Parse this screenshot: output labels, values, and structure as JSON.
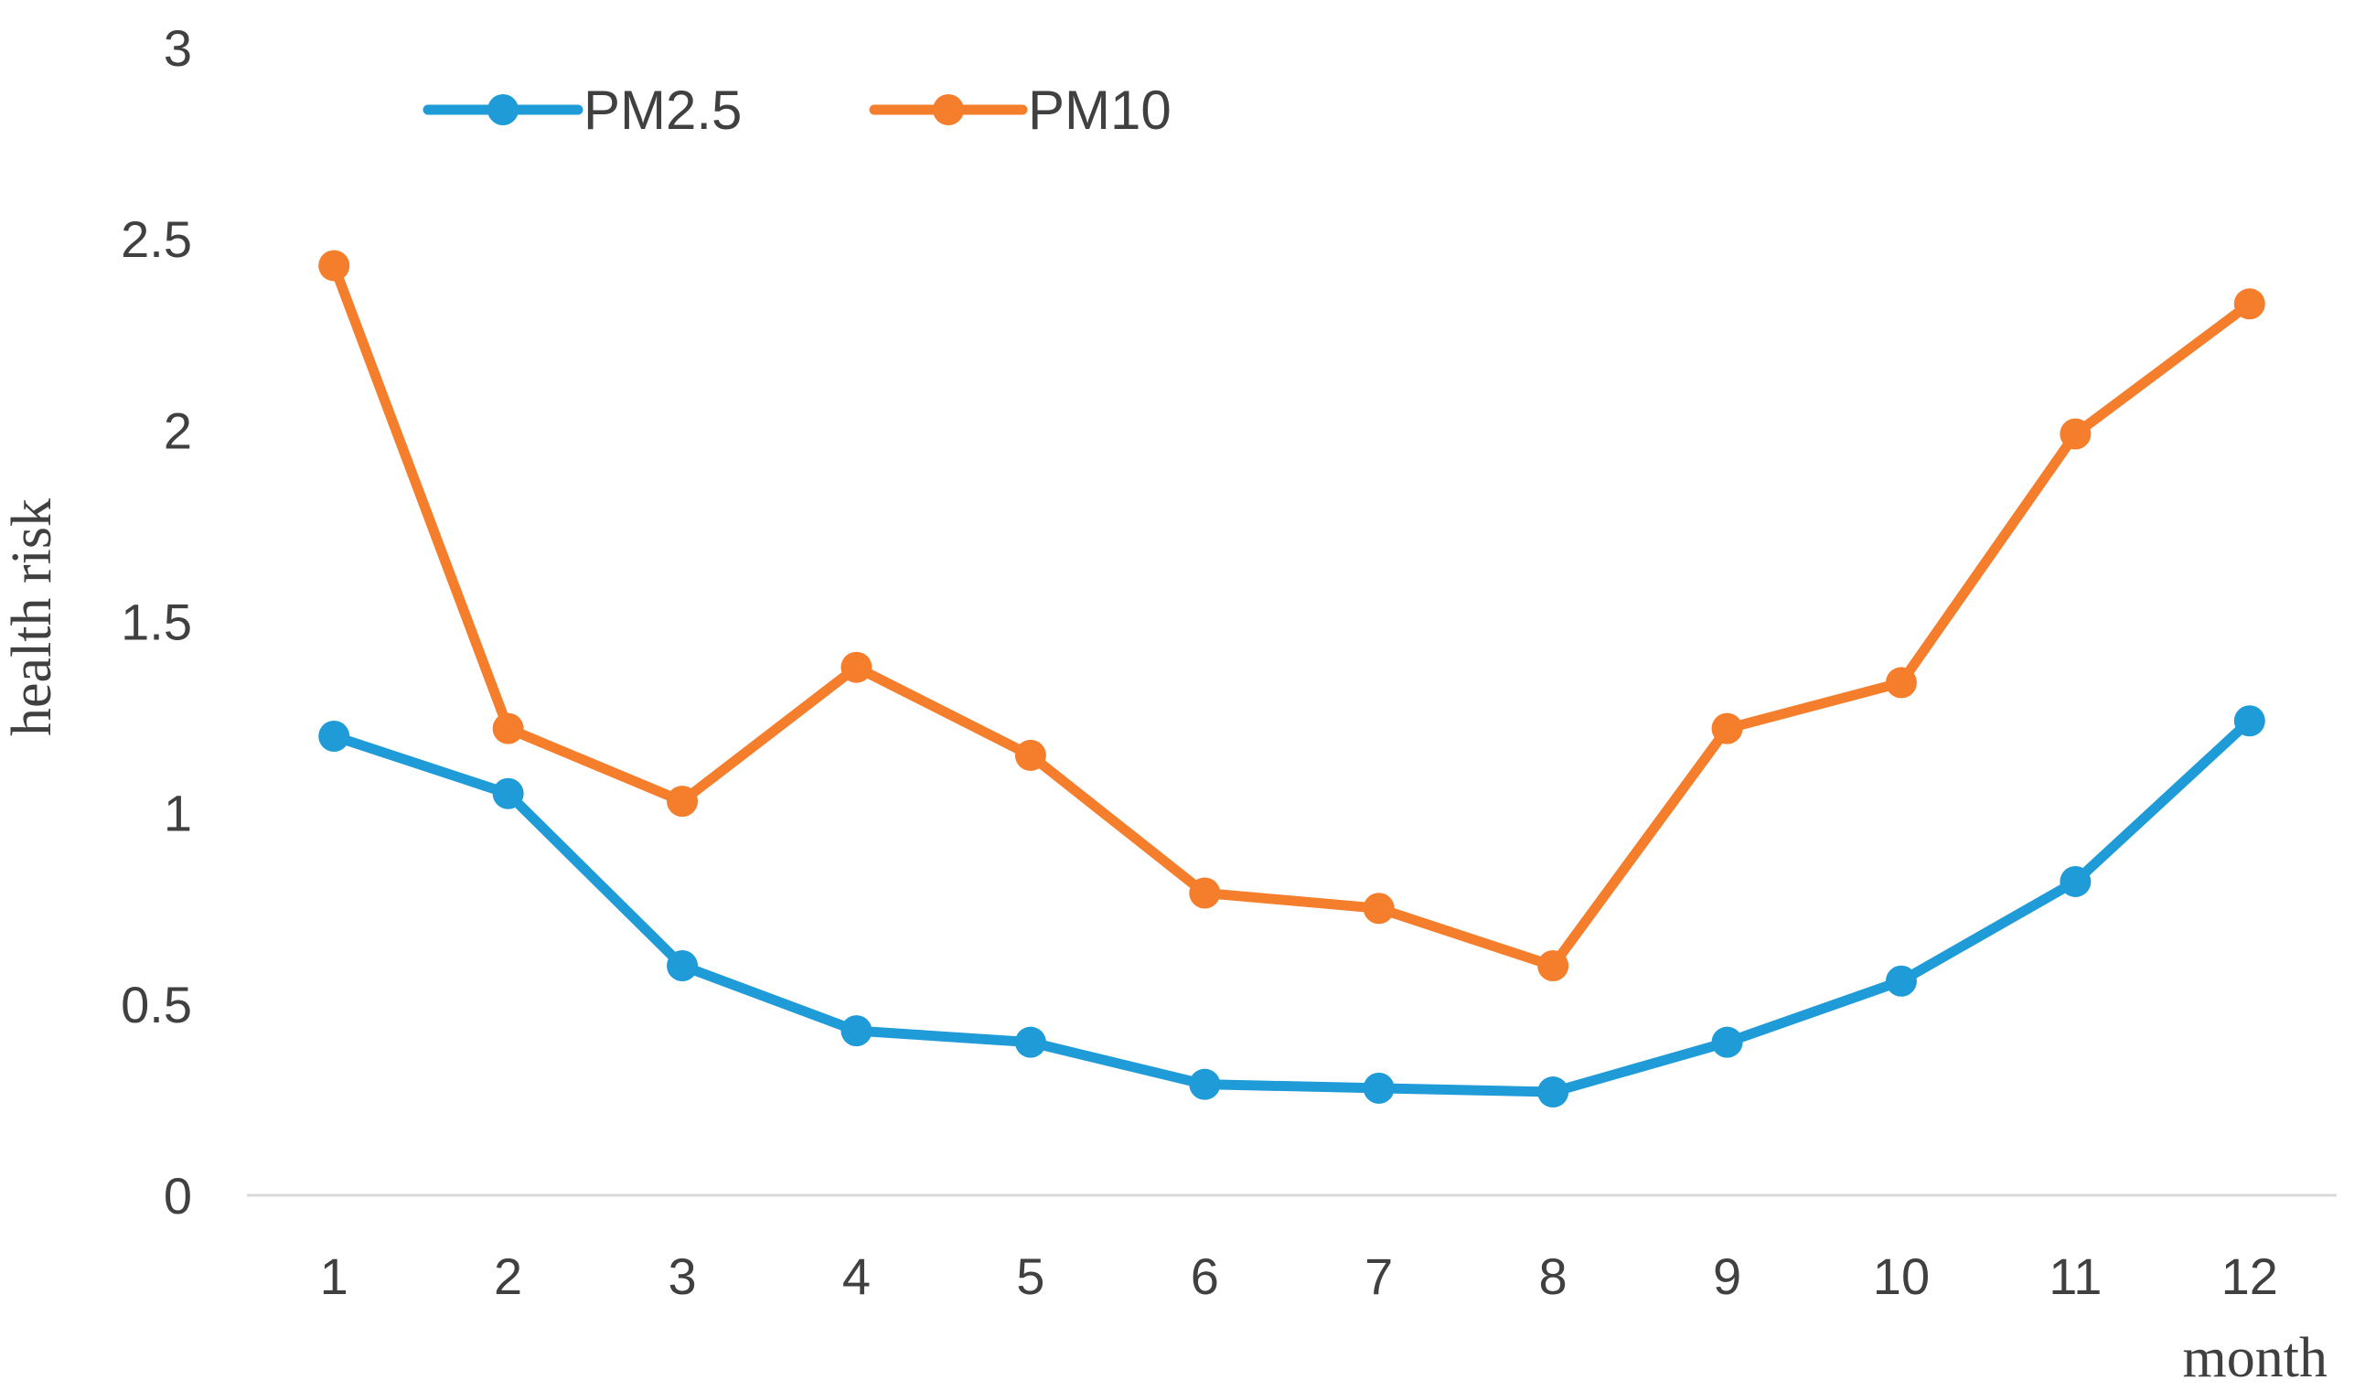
{
  "chart_data": {
    "type": "line",
    "title": "",
    "xlabel": "month",
    "ylabel": "health risk",
    "categories": [
      "1",
      "2",
      "3",
      "4",
      "5",
      "6",
      "7",
      "8",
      "9",
      "10",
      "11",
      "12"
    ],
    "ylim": [
      0,
      3
    ],
    "yticks": [
      "0",
      "0.5",
      "1",
      "1.5",
      "2",
      "2.5",
      "3"
    ],
    "grid": false,
    "legend_position": "top-left",
    "series": [
      {
        "name": "PM2.5",
        "color": "#1f9bd7",
        "values": [
          1.2,
          1.05,
          0.6,
          0.43,
          0.4,
          0.29,
          0.28,
          0.27,
          0.4,
          0.56,
          0.82,
          1.24
        ]
      },
      {
        "name": "PM10",
        "color": "#f57e2c",
        "values": [
          2.43,
          1.22,
          1.03,
          1.38,
          1.15,
          0.79,
          0.75,
          0.6,
          1.22,
          1.34,
          1.99,
          2.33
        ]
      }
    ]
  }
}
